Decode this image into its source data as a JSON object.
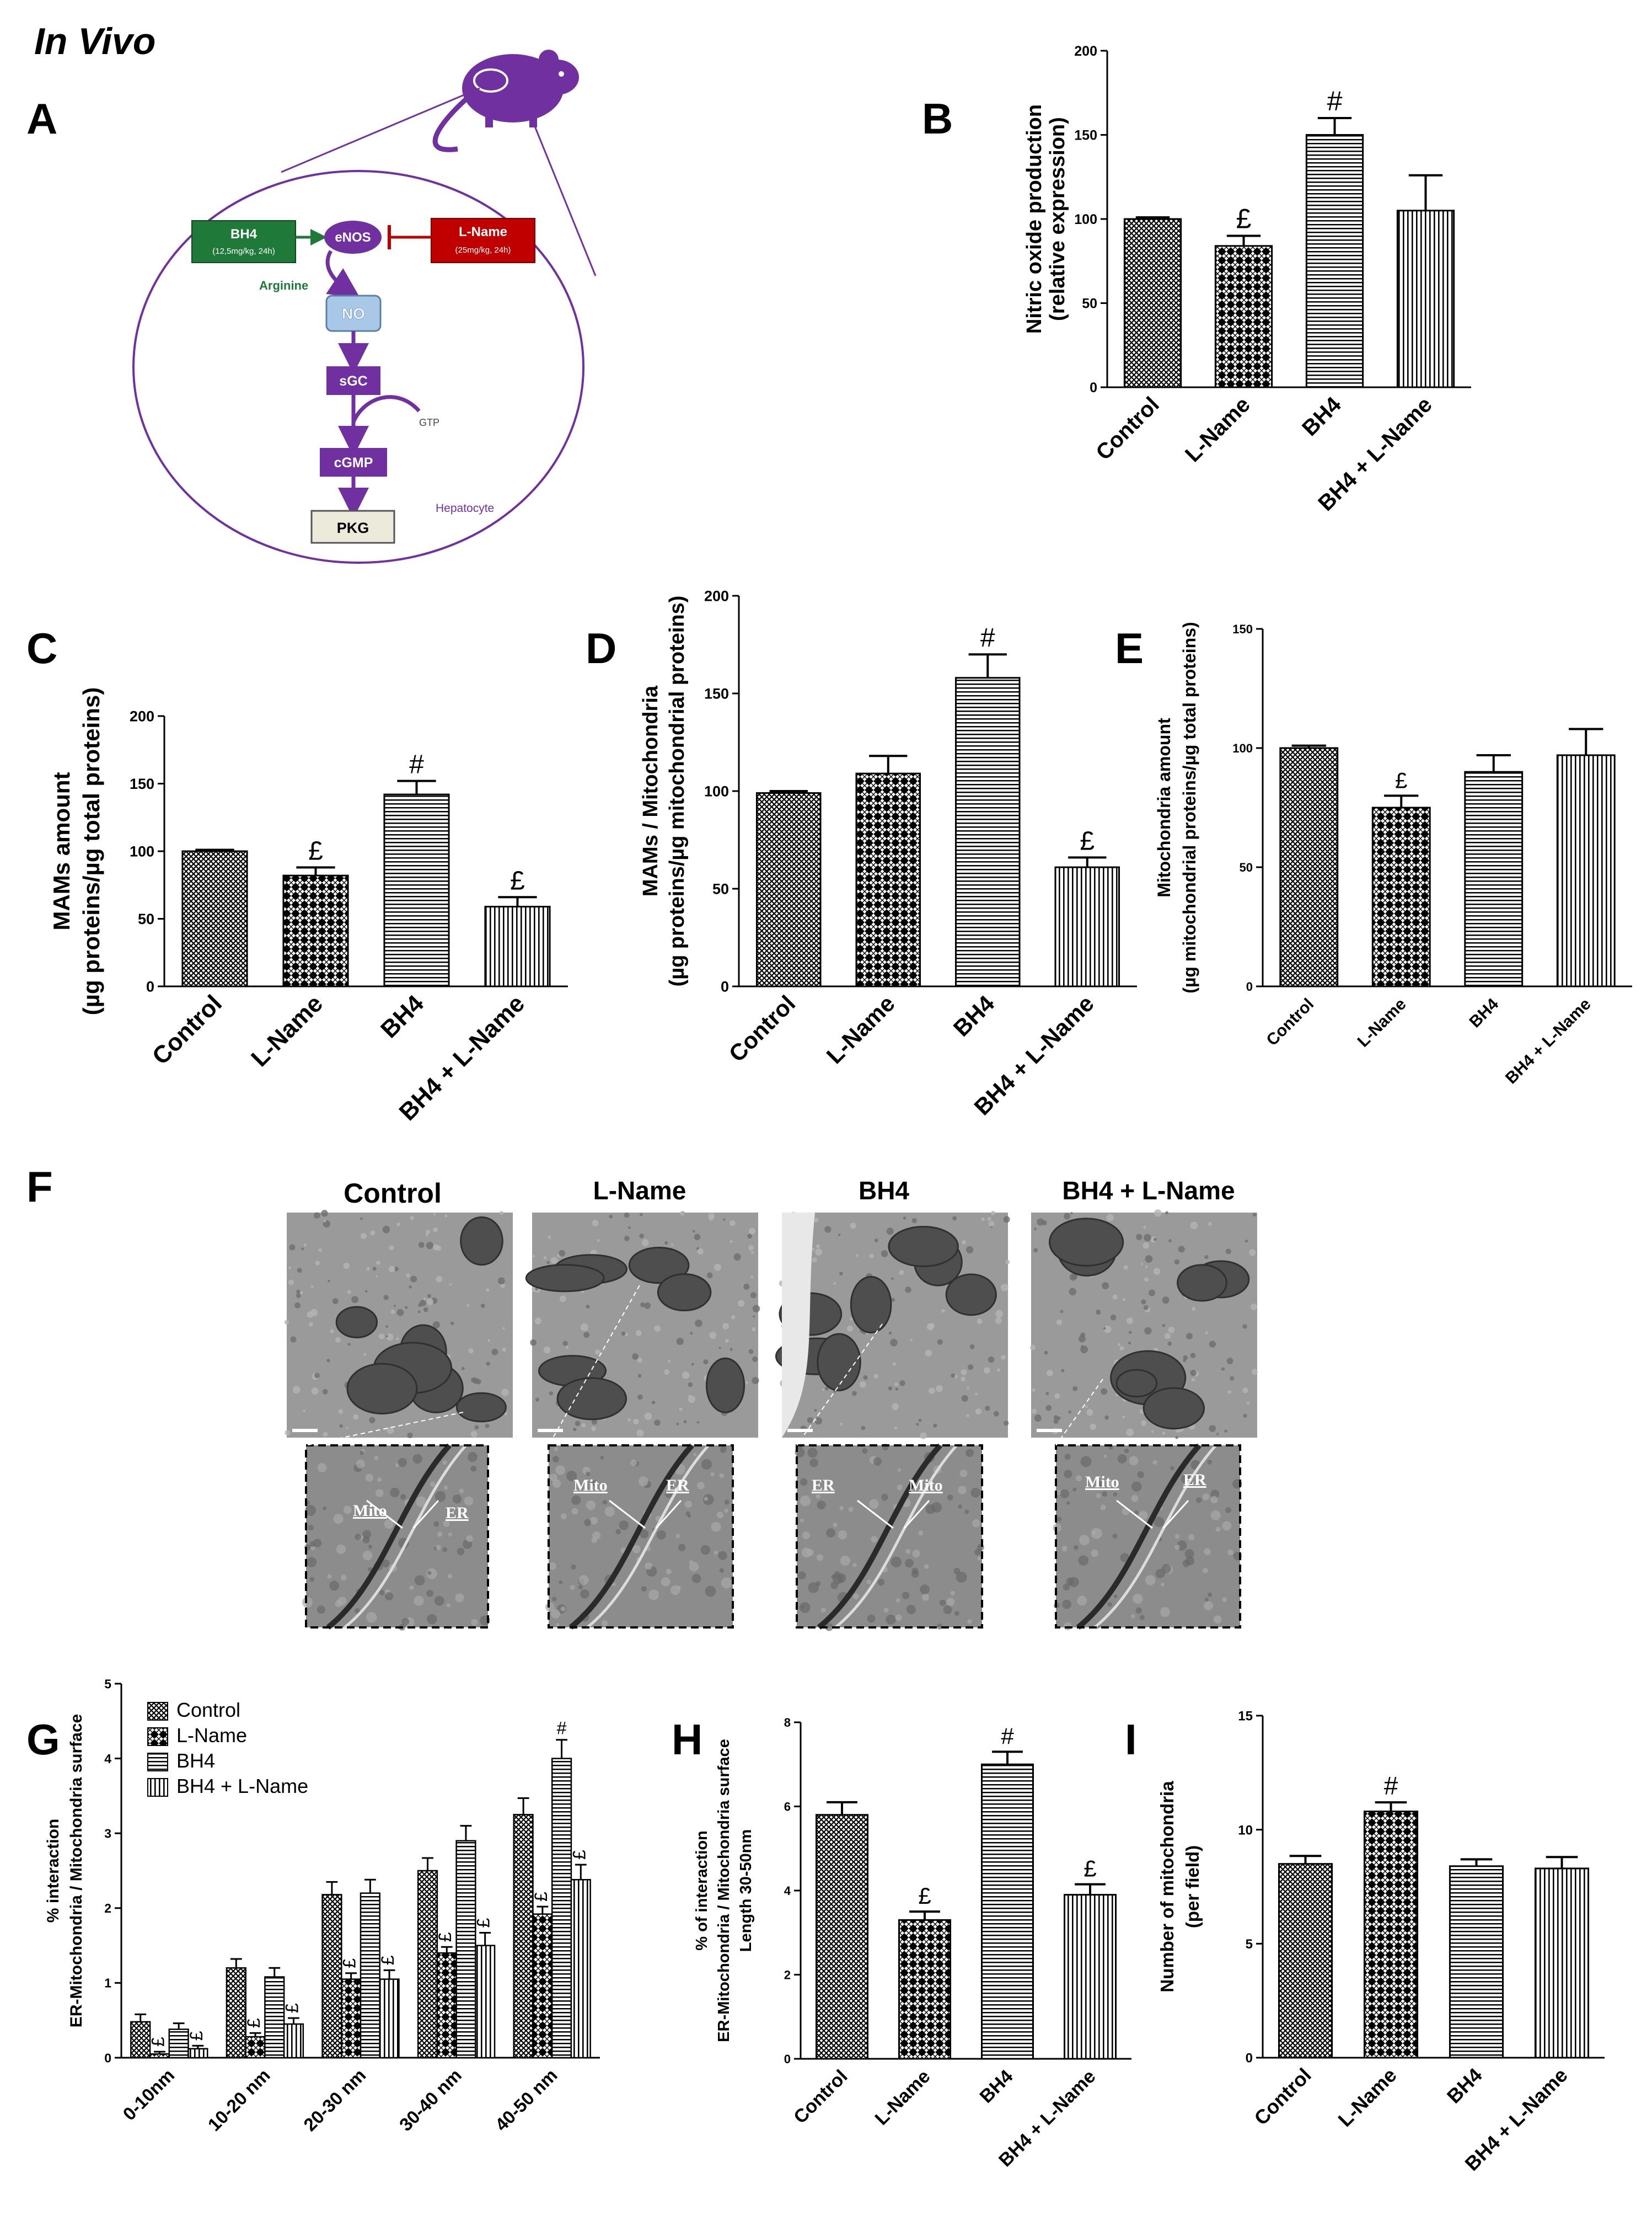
{
  "figure": {
    "heading": "In Vivo",
    "panel_letters": {
      "A": "A",
      "B": "B",
      "C": "C",
      "D": "D",
      "E": "E",
      "F": "F",
      "G": "G",
      "H": "H",
      "I": "I"
    }
  },
  "colors": {
    "purple": "#7030A0",
    "green": "#1F7A3A",
    "red": "#C00000",
    "black": "#000000",
    "em_gray": "#8a8a8a"
  },
  "diagram": {
    "bh4_box": {
      "title": "BH4",
      "sub": "(12,5mg/kg, 24h)"
    },
    "lname_box": {
      "title": "L-Name",
      "sub": "(25mg/kg, 24h)"
    },
    "enos": "eNOS",
    "arginine": "Arginine",
    "no": "NO",
    "sgc": "sGC",
    "gtp": "GTP",
    "cgmp": "cGMP",
    "pkg": "PKG",
    "hepatocyte": "Hepatocyte"
  },
  "chart_data": [
    {
      "id": "B",
      "type": "bar",
      "categories": [
        "Control",
        "L-Name",
        "BH4",
        "BH4 + L-Name"
      ],
      "values": [
        100,
        84,
        150,
        105
      ],
      "errors": [
        1,
        6,
        10,
        21
      ],
      "markers": [
        "",
        "£",
        "#",
        ""
      ],
      "patterns": [
        "crosshatch",
        "checker",
        "hlines",
        "vlines"
      ],
      "ylabel": [
        "Nitric oxide production",
        "(relative expression)"
      ],
      "ylim": [
        0,
        200
      ],
      "yticks": [
        0,
        50,
        100,
        150,
        200
      ]
    },
    {
      "id": "C",
      "type": "bar",
      "categories": [
        "Control",
        "L-Name",
        "BH4",
        "BH4 + L-Name"
      ],
      "values": [
        100,
        82,
        142,
        59
      ],
      "errors": [
        1,
        6,
        10,
        7
      ],
      "markers": [
        "",
        "£",
        "#",
        "£"
      ],
      "patterns": [
        "crosshatch",
        "checker",
        "hlines",
        "vlines"
      ],
      "ylabel": [
        "MAMs amount",
        "(µg proteins/µg total proteins)"
      ],
      "ylim": [
        0,
        200
      ],
      "yticks": [
        0,
        50,
        100,
        150,
        200
      ]
    },
    {
      "id": "D",
      "type": "bar",
      "categories": [
        "Control",
        "L-Name",
        "BH4",
        "BH4 + L-Name"
      ],
      "values": [
        99,
        109,
        158,
        61
      ],
      "errors": [
        1,
        9,
        12,
        5
      ],
      "markers": [
        "",
        "",
        "#",
        "£"
      ],
      "patterns": [
        "crosshatch",
        "checker",
        "hlines",
        "vlines"
      ],
      "ylabel": [
        "MAMs / Mitochondria",
        "(µg proteins/µg mitochondrial proteins)"
      ],
      "ylim": [
        0,
        200
      ],
      "yticks": [
        0,
        50,
        100,
        150,
        200
      ]
    },
    {
      "id": "E",
      "type": "bar",
      "categories": [
        "Control",
        "L-Name",
        "BH4",
        "BH4 + L-Name"
      ],
      "values": [
        100,
        75,
        90,
        97
      ],
      "errors": [
        1,
        5,
        7,
        11
      ],
      "markers": [
        "",
        "£",
        "",
        ""
      ],
      "patterns": [
        "crosshatch",
        "checker",
        "hlines",
        "vlines"
      ],
      "ylabel": [
        "Mitochondria amount",
        "(µg mitochondrial proteins/µg total proteins)"
      ],
      "ylim": [
        0,
        150
      ],
      "yticks": [
        0,
        50,
        100,
        150
      ]
    },
    {
      "id": "G",
      "type": "bar",
      "categories": [
        "0-10nm",
        "10-20 nm",
        "20-30 nm",
        "30-40 nm",
        "40-50 nm"
      ],
      "series": [
        {
          "name": "Control",
          "pattern": "crosshatch",
          "values": [
            0.48,
            1.2,
            2.18,
            2.5,
            3.25
          ],
          "errors": [
            0.1,
            0.12,
            0.17,
            0.17,
            0.22
          ],
          "markers": [
            "",
            "",
            "",
            "",
            ""
          ]
        },
        {
          "name": "L-Name",
          "pattern": "checker",
          "values": [
            0.05,
            0.28,
            1.05,
            1.4,
            1.92
          ],
          "errors": [
            0.03,
            0.05,
            0.08,
            0.08,
            0.1
          ],
          "markers": [
            "£",
            "£",
            "£",
            "£",
            "£"
          ]
        },
        {
          "name": "BH4",
          "pattern": "hlines",
          "values": [
            0.38,
            1.08,
            2.2,
            2.9,
            4.0
          ],
          "errors": [
            0.08,
            0.12,
            0.18,
            0.2,
            0.25
          ],
          "markers": [
            "",
            "",
            "",
            "",
            "#"
          ]
        },
        {
          "name": "BH4 + L-Name",
          "pattern": "vlines",
          "values": [
            0.12,
            0.45,
            1.05,
            1.5,
            2.38
          ],
          "errors": [
            0.04,
            0.08,
            0.12,
            0.17,
            0.2
          ],
          "markers": [
            "£",
            "£",
            "£",
            "£",
            "£"
          ]
        }
      ],
      "ylabel": [
        "% interaction",
        "ER-Mitochondria / Mitochondria surface"
      ],
      "ylim": [
        0,
        5
      ],
      "yticks": [
        0,
        1,
        2,
        3,
        4,
        5
      ],
      "legend": "top-left"
    },
    {
      "id": "H",
      "type": "bar",
      "categories": [
        "Control",
        "L-Name",
        "BH4",
        "BH4 + L-Name"
      ],
      "values": [
        5.8,
        3.3,
        7.0,
        3.9
      ],
      "errors": [
        0.3,
        0.2,
        0.3,
        0.25
      ],
      "markers": [
        "",
        "£",
        "#",
        "£"
      ],
      "patterns": [
        "crosshatch",
        "checker",
        "hlines",
        "vlines"
      ],
      "ylabel": [
        "% of interaction",
        "ER-Mitochondria / Mitochondria surface",
        "Length 30-50nm"
      ],
      "ylim": [
        0,
        8
      ],
      "yticks": [
        0,
        2,
        4,
        6,
        8
      ]
    },
    {
      "id": "I",
      "type": "bar",
      "categories": [
        "Control",
        "L-Name",
        "BH4",
        "BH4 + L-Name"
      ],
      "values": [
        8.5,
        10.8,
        8.4,
        8.3
      ],
      "errors": [
        0.35,
        0.4,
        0.3,
        0.5
      ],
      "markers": [
        "",
        "#",
        "",
        ""
      ],
      "patterns": [
        "crosshatch",
        "checker",
        "hlines",
        "vlines"
      ],
      "ylabel": [
        "Number of mitochondria",
        "(per field)"
      ],
      "ylim": [
        0,
        15
      ],
      "yticks": [
        0,
        5,
        10,
        15
      ]
    }
  ],
  "micrographs": {
    "titles": [
      "Control",
      "L-Name",
      "BH4",
      "BH4 + L-Name"
    ],
    "zoom_labels": [
      {
        "left": "Mito",
        "right": "ER"
      },
      {
        "left": "Mito",
        "right": "ER"
      },
      {
        "left": "ER",
        "right": "Mito"
      },
      {
        "left": "Mito",
        "right": "ER"
      }
    ]
  }
}
